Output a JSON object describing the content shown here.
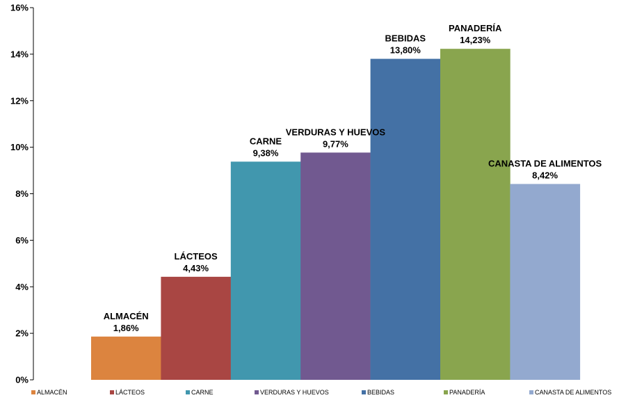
{
  "chart_data": {
    "type": "bar",
    "categories": [
      "ALMACÉN",
      "LÁCTEOS",
      "CARNE",
      "VERDURAS Y HUEVOS",
      "BEBIDAS",
      "PANADERÍA",
      "CANASTA DE ALIMENTOS"
    ],
    "values": [
      1.86,
      4.43,
      9.38,
      9.77,
      13.8,
      14.23,
      8.42
    ],
    "data_labels": [
      "1,86%",
      "4,43%",
      "9,38%",
      "9,77%",
      "13,80%",
      "14,23%",
      "8,42%"
    ],
    "colors": [
      "#DC843F",
      "#A94643",
      "#4197AE",
      "#715990",
      "#4471A5",
      "#89A54E",
      "#93A9CF"
    ],
    "yticks": [
      0,
      2,
      4,
      6,
      8,
      10,
      12,
      14,
      16
    ],
    "ytick_labels": [
      "0%",
      "2%",
      "4%",
      "6%",
      "8%",
      "10%",
      "12%",
      "14%",
      "16%"
    ],
    "ylim": [
      0,
      16
    ],
    "legend_position": "bottom",
    "grid": false,
    "title": "",
    "xlabel": "",
    "ylabel": ""
  }
}
